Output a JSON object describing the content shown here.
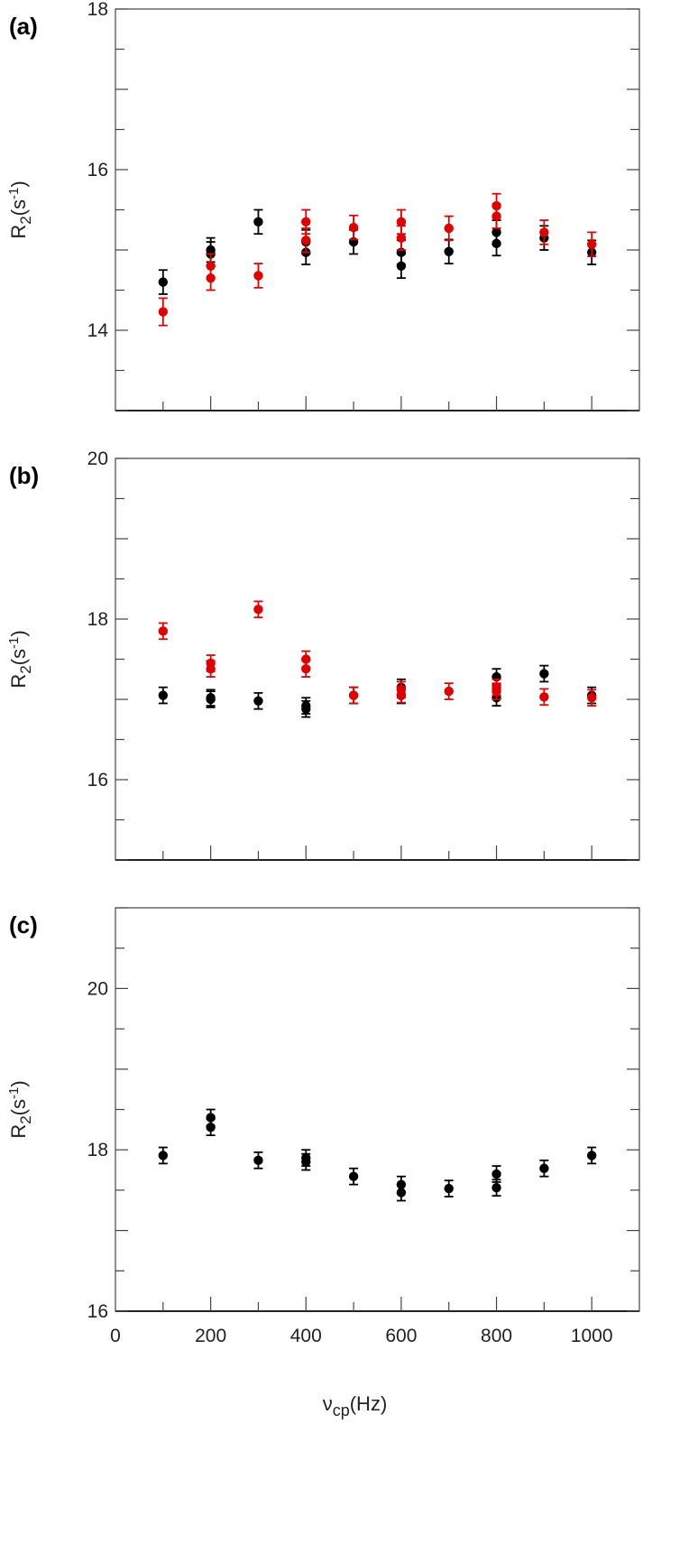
{
  "chart_data": [
    {
      "type": "scatter",
      "panel_label": "(a)",
      "xlabel": "",
      "ylabel": "R2(s-1)",
      "xlim": [
        0,
        1100
      ],
      "ylim": [
        13,
        18
      ],
      "yticks_labeled": [
        "14",
        "16",
        "18"
      ],
      "grid": false,
      "series": [
        {
          "color": "#000000",
          "points": [
            {
              "x": 100,
              "y": 14.6,
              "err": 0.15
            },
            {
              "x": 200,
              "y": 15.0,
              "err": 0.15
            },
            {
              "x": 200,
              "y": 14.95,
              "err": 0.15
            },
            {
              "x": 300,
              "y": 15.35,
              "err": 0.15
            },
            {
              "x": 400,
              "y": 15.1,
              "err": 0.15
            },
            {
              "x": 400,
              "y": 14.97,
              "err": 0.15
            },
            {
              "x": 500,
              "y": 15.1,
              "err": 0.15
            },
            {
              "x": 600,
              "y": 14.97,
              "err": 0.15
            },
            {
              "x": 600,
              "y": 14.8,
              "err": 0.15
            },
            {
              "x": 700,
              "y": 14.98,
              "err": 0.15
            },
            {
              "x": 800,
              "y": 15.22,
              "err": 0.15
            },
            {
              "x": 800,
              "y": 15.08,
              "err": 0.15
            },
            {
              "x": 900,
              "y": 15.15,
              "err": 0.15
            },
            {
              "x": 1000,
              "y": 14.97,
              "err": 0.15
            }
          ]
        },
        {
          "color": "#e00000",
          "points": [
            {
              "x": 100,
              "y": 14.23,
              "err": 0.17
            },
            {
              "x": 200,
              "y": 14.8,
              "err": 0.15
            },
            {
              "x": 200,
              "y": 14.65,
              "err": 0.15
            },
            {
              "x": 300,
              "y": 14.68,
              "err": 0.15
            },
            {
              "x": 400,
              "y": 15.35,
              "err": 0.15
            },
            {
              "x": 400,
              "y": 15.12,
              "err": 0.15
            },
            {
              "x": 500,
              "y": 15.28,
              "err": 0.15
            },
            {
              "x": 600,
              "y": 15.35,
              "err": 0.15
            },
            {
              "x": 600,
              "y": 15.15,
              "err": 0.15
            },
            {
              "x": 700,
              "y": 15.27,
              "err": 0.15
            },
            {
              "x": 800,
              "y": 15.55,
              "err": 0.15
            },
            {
              "x": 800,
              "y": 15.42,
              "err": 0.15
            },
            {
              "x": 900,
              "y": 15.22,
              "err": 0.15
            },
            {
              "x": 1000,
              "y": 15.07,
              "err": 0.15
            }
          ]
        }
      ]
    },
    {
      "type": "scatter",
      "panel_label": "(b)",
      "xlabel": "",
      "ylabel": "R2(s-1)",
      "xlim": [
        0,
        1100
      ],
      "ylim": [
        15,
        20
      ],
      "yticks_labeled": [
        "16",
        "18",
        "20"
      ],
      "grid": false,
      "series": [
        {
          "color": "#000000",
          "points": [
            {
              "x": 100,
              "y": 17.05,
              "err": 0.1
            },
            {
              "x": 200,
              "y": 17.02,
              "err": 0.1
            },
            {
              "x": 200,
              "y": 17.0,
              "err": 0.1
            },
            {
              "x": 300,
              "y": 16.98,
              "err": 0.1
            },
            {
              "x": 400,
              "y": 16.92,
              "err": 0.1
            },
            {
              "x": 400,
              "y": 16.88,
              "err": 0.1
            },
            {
              "x": 500,
              "y": 17.05,
              "err": 0.1
            },
            {
              "x": 600,
              "y": 17.15,
              "err": 0.1
            },
            {
              "x": 600,
              "y": 17.05,
              "err": 0.1
            },
            {
              "x": 800,
              "y": 17.28,
              "err": 0.1
            },
            {
              "x": 800,
              "y": 17.02,
              "err": 0.1
            },
            {
              "x": 900,
              "y": 17.32,
              "err": 0.1
            },
            {
              "x": 1000,
              "y": 17.05,
              "err": 0.1
            }
          ]
        },
        {
          "color": "#e00000",
          "points": [
            {
              "x": 100,
              "y": 17.85,
              "err": 0.1
            },
            {
              "x": 200,
              "y": 17.45,
              "err": 0.1
            },
            {
              "x": 200,
              "y": 17.38,
              "err": 0.1
            },
            {
              "x": 300,
              "y": 18.12,
              "err": 0.1
            },
            {
              "x": 400,
              "y": 17.5,
              "err": 0.1
            },
            {
              "x": 400,
              "y": 17.38,
              "err": 0.1
            },
            {
              "x": 500,
              "y": 17.05,
              "err": 0.1
            },
            {
              "x": 600,
              "y": 17.12,
              "err": 0.1
            },
            {
              "x": 600,
              "y": 17.06,
              "err": 0.1
            },
            {
              "x": 700,
              "y": 17.1,
              "err": 0.1
            },
            {
              "x": 800,
              "y": 17.15,
              "err": 0.1
            },
            {
              "x": 800,
              "y": 17.1,
              "err": 0.1
            },
            {
              "x": 900,
              "y": 17.03,
              "err": 0.1
            },
            {
              "x": 1000,
              "y": 17.02,
              "err": 0.1
            }
          ]
        }
      ]
    },
    {
      "type": "scatter",
      "panel_label": "(c)",
      "xlabel": "νcp(Hz)",
      "ylabel": "R2(s-1)",
      "xlim": [
        0,
        1100
      ],
      "ylim": [
        16,
        21
      ],
      "xticks": [
        "0",
        "200",
        "400",
        "600",
        "800",
        "1000"
      ],
      "yticks_labeled": [
        "16",
        "18",
        "20"
      ],
      "grid": false,
      "series": [
        {
          "color": "#000000",
          "points": [
            {
              "x": 100,
              "y": 17.93,
              "err": 0.1
            },
            {
              "x": 200,
              "y": 18.4,
              "err": 0.1
            },
            {
              "x": 200,
              "y": 18.28,
              "err": 0.1
            },
            {
              "x": 300,
              "y": 17.87,
              "err": 0.1
            },
            {
              "x": 400,
              "y": 17.9,
              "err": 0.1
            },
            {
              "x": 400,
              "y": 17.85,
              "err": 0.1
            },
            {
              "x": 500,
              "y": 17.67,
              "err": 0.1
            },
            {
              "x": 600,
              "y": 17.57,
              "err": 0.1
            },
            {
              "x": 600,
              "y": 17.47,
              "err": 0.1
            },
            {
              "x": 700,
              "y": 17.52,
              "err": 0.1
            },
            {
              "x": 800,
              "y": 17.7,
              "err": 0.1
            },
            {
              "x": 800,
              "y": 17.53,
              "err": 0.1
            },
            {
              "x": 900,
              "y": 17.77,
              "err": 0.1
            },
            {
              "x": 1000,
              "y": 17.93,
              "err": 0.1
            }
          ]
        }
      ]
    }
  ]
}
